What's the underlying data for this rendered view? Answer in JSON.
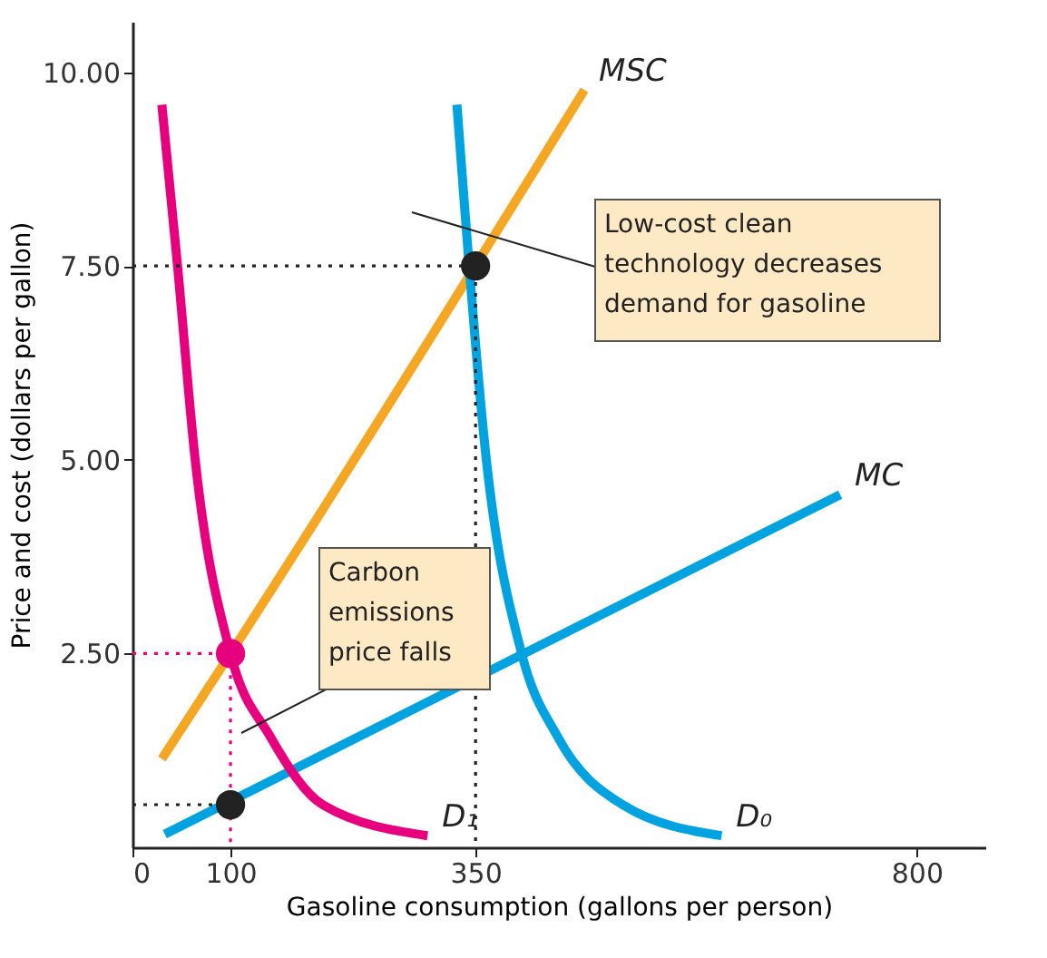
{
  "chart_data": {
    "type": "line",
    "xlabel": "Gasoline consumption (gallons per person)",
    "ylabel": "Price and cost (dollars per gallon)",
    "xlim": [
      0,
      870
    ],
    "ylim": [
      0,
      10.65
    ],
    "xticks": [
      0,
      100,
      350,
      800
    ],
    "yticks": [
      {
        "value": 2.5,
        "label": "2.50"
      },
      {
        "value": 5,
        "label": "5.00"
      },
      {
        "value": 7.5,
        "label": "7.50"
      },
      {
        "value": 10,
        "label": "10.00"
      }
    ],
    "grid": false,
    "line_style": "solid",
    "marker": "none",
    "series": [
      {
        "name": "MSC",
        "color": "#f5a623",
        "x": [
          30,
          100,
          461
        ],
        "values": [
          1.14,
          2.5,
          9.77
        ]
      },
      {
        "name": "MC",
        "color": "#00a3e0",
        "x": [
          33,
          722
        ],
        "values": [
          0.17,
          4.55
        ]
      },
      {
        "name": "D₁",
        "color": "#e6007e",
        "x": [
          30,
          46,
          64,
          100,
          141,
          194,
          301
        ],
        "values": [
          9.58,
          7.5,
          5.0,
          2.5,
          1.42,
          0.55,
          0.15
        ]
      },
      {
        "name": "D₀",
        "color": "#00a3e0",
        "x": [
          331,
          361,
          397,
          434,
          500,
          601
        ],
        "values": [
          9.58,
          5.0,
          2.5,
          1.42,
          0.55,
          0.15
        ]
      },
      {
        "color": "#222222",
        "line_style": "dotted",
        "x": [
          0,
          350,
          350
        ],
        "values": [
          7.5,
          7.5,
          0
        ]
      },
      {
        "color": "#e6007e",
        "line_style": "dotted",
        "x": [
          0,
          100,
          100
        ],
        "values": [
          2.5,
          2.5,
          0
        ]
      },
      {
        "color": "#222222",
        "line_style": "dotted",
        "x": [
          0,
          100
        ],
        "values": [
          0.55,
          0.55
        ]
      },
      {
        "type": "scatter",
        "marker": "circle",
        "color": "#222222",
        "x": [
          350,
          100
        ],
        "values": [
          7.5,
          0.55
        ]
      },
      {
        "type": "scatter",
        "marker": "circle",
        "color": "#e6007e",
        "x": [
          100
        ],
        "values": [
          2.5
        ]
      }
    ],
    "annotations": [
      "Low-cost clean technology decreases demand for gasoline",
      "Carbon emissions price falls"
    ]
  }
}
